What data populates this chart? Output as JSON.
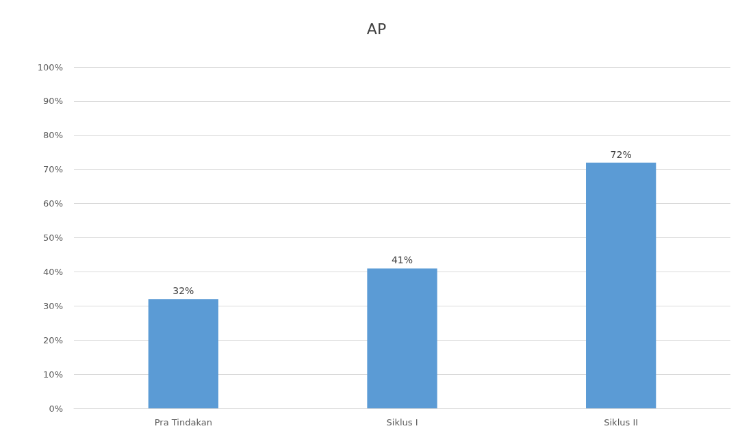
{
  "chart_data": {
    "type": "bar",
    "title": "AP",
    "categories": [
      "Pra Tindakan",
      "Siklus I",
      "Siklus II"
    ],
    "values": [
      32,
      41,
      72
    ],
    "value_labels": [
      "32%",
      "41%",
      "72%"
    ],
    "color": "#5b9bd5",
    "ylim": [
      0,
      100
    ],
    "yticks": [
      {
        "value": 0,
        "label": "0%"
      },
      {
        "value": 10,
        "label": "10%"
      },
      {
        "value": 20,
        "label": "20%"
      },
      {
        "value": 30,
        "label": "30%"
      },
      {
        "value": 40,
        "label": "40%"
      },
      {
        "value": 50,
        "label": "50%"
      },
      {
        "value": 60,
        "label": "60%"
      },
      {
        "value": 70,
        "label": "70%"
      },
      {
        "value": 80,
        "label": "80%"
      },
      {
        "value": 90,
        "label": "90%"
      },
      {
        "value": 100,
        "label": "100%"
      }
    ],
    "grid": "y"
  }
}
